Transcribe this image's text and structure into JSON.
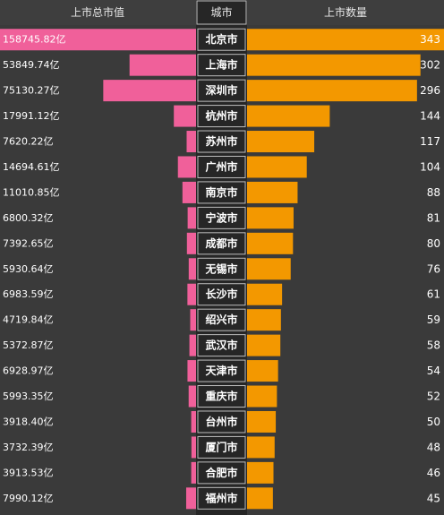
{
  "headers": {
    "left": "上市总市值",
    "center": "城市",
    "right": "上市数量"
  },
  "colors": {
    "background": "#3a3a3a",
    "header_bg": "#3e3e3e",
    "market_cap_bar": "#f0609a",
    "count_bar": "#f39800",
    "city_column_bg": "#262626",
    "city_cell_border": "#bdbdbd",
    "text": "#ffffff"
  },
  "chart_data": {
    "type": "bar",
    "orientation": "horizontal",
    "layout": "butterfly",
    "categories": [
      "北京市",
      "上海市",
      "深圳市",
      "杭州市",
      "苏州市",
      "广州市",
      "南京市",
      "宁波市",
      "成都市",
      "无锡市",
      "长沙市",
      "绍兴市",
      "武汉市",
      "天津市",
      "重庆市",
      "台州市",
      "厦门市",
      "合肥市",
      "福州市"
    ],
    "series": [
      {
        "name": "上市总市值",
        "values": [
          158745.82,
          53849.74,
          75130.27,
          17991.12,
          7620.22,
          14694.61,
          11010.85,
          6800.32,
          7392.65,
          5930.64,
          6983.59,
          4719.84,
          5372.87,
          6928.97,
          5993.35,
          3918.4,
          3732.39,
          3913.53,
          7990.12
        ],
        "labels": [
          "158745.82亿",
          "53849.74亿",
          "75130.27亿",
          "17991.12亿",
          "7620.22亿",
          "14694.61亿",
          "11010.85亿",
          "6800.32亿",
          "7392.65亿",
          "5930.64亿",
          "6983.59亿",
          "4719.84亿",
          "5372.87亿",
          "6928.97亿",
          "5993.35亿",
          "3918.40亿",
          "3732.39亿",
          "3913.53亿",
          "7990.12亿"
        ],
        "max": 158745.82
      },
      {
        "name": "上市数量",
        "values": [
          343,
          302,
          296,
          144,
          117,
          104,
          88,
          81,
          80,
          76,
          61,
          59,
          58,
          54,
          52,
          50,
          48,
          46,
          45
        ],
        "max": 343
      }
    ]
  }
}
